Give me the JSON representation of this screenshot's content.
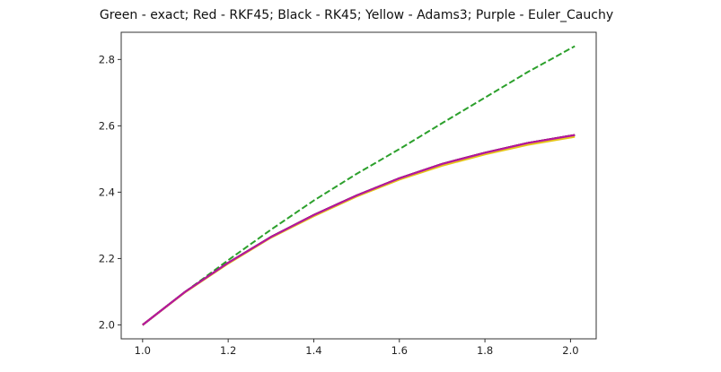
{
  "chart_data": {
    "type": "line",
    "title": "Green - exact; Red - RKF45; Black - RK45; Yellow - Adams3; Purple - Euler_Cauchy",
    "xlabel": "",
    "ylabel": "",
    "xlim": [
      0.95,
      2.06
    ],
    "ylim": [
      1.958,
      2.882
    ],
    "grid": false,
    "x_ticks": [
      "1.0",
      "1.2",
      "1.4",
      "1.6",
      "1.8",
      "2.0"
    ],
    "y_ticks": [
      "2.0",
      "2.2",
      "2.4",
      "2.6",
      "2.8"
    ],
    "x": [
      1.0,
      1.1,
      1.2,
      1.3,
      1.4,
      1.5,
      1.6,
      1.7,
      1.8,
      1.9,
      2.01
    ],
    "series": [
      {
        "color": "#2ca02c",
        "style": "dashed",
        "values": [
          2.0,
          2.1,
          2.195,
          2.287,
          2.375,
          2.455,
          2.53,
          2.608,
          2.685,
          2.762,
          2.84
        ]
      },
      {
        "color": "#d62728",
        "style": "solid",
        "values": [
          2.0,
          2.1,
          2.187,
          2.265,
          2.331,
          2.39,
          2.442,
          2.485,
          2.519,
          2.548,
          2.572
        ]
      },
      {
        "color": "#000000",
        "style": "solid",
        "values": [
          2.0,
          2.1,
          2.187,
          2.265,
          2.331,
          2.39,
          2.442,
          2.485,
          2.519,
          2.548,
          2.572
        ]
      },
      {
        "color": "#e6c619",
        "style": "solid",
        "values": [
          2.0,
          2.099,
          2.185,
          2.263,
          2.328,
          2.387,
          2.438,
          2.48,
          2.514,
          2.543,
          2.567
        ]
      },
      {
        "color": "#b5179e",
        "style": "solid",
        "values": [
          2.0,
          2.1,
          2.187,
          2.265,
          2.331,
          2.39,
          2.442,
          2.485,
          2.519,
          2.548,
          2.572
        ]
      }
    ]
  }
}
